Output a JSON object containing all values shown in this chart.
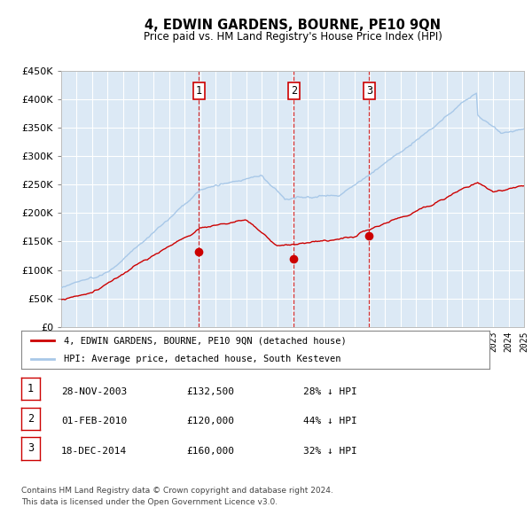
{
  "title": "4, EDWIN GARDENS, BOURNE, PE10 9QN",
  "subtitle": "Price paid vs. HM Land Registry's House Price Index (HPI)",
  "bg_color": "#dce9f5",
  "red_line_label": "4, EDWIN GARDENS, BOURNE, PE10 9QN (detached house)",
  "blue_line_label": "HPI: Average price, detached house, South Kesteven",
  "transactions": [
    {
      "num": 1,
      "date": "28-NOV-2003",
      "price": 132500,
      "pct": "28%",
      "dir": "↓",
      "year": 2003.92
    },
    {
      "num": 2,
      "date": "01-FEB-2010",
      "price": 120000,
      "pct": "44%",
      "dir": "↓",
      "year": 2010.08
    },
    {
      "num": 3,
      "date": "18-DEC-2014",
      "price": 160000,
      "pct": "32%",
      "dir": "↓",
      "year": 2014.96
    }
  ],
  "footer_line1": "Contains HM Land Registry data © Crown copyright and database right 2024.",
  "footer_line2": "This data is licensed under the Open Government Licence v3.0.",
  "ylim": [
    0,
    450000
  ],
  "yticks": [
    0,
    50000,
    100000,
    150000,
    200000,
    250000,
    300000,
    350000,
    400000,
    450000
  ],
  "x_start_year": 1995,
  "x_end_year": 2025
}
